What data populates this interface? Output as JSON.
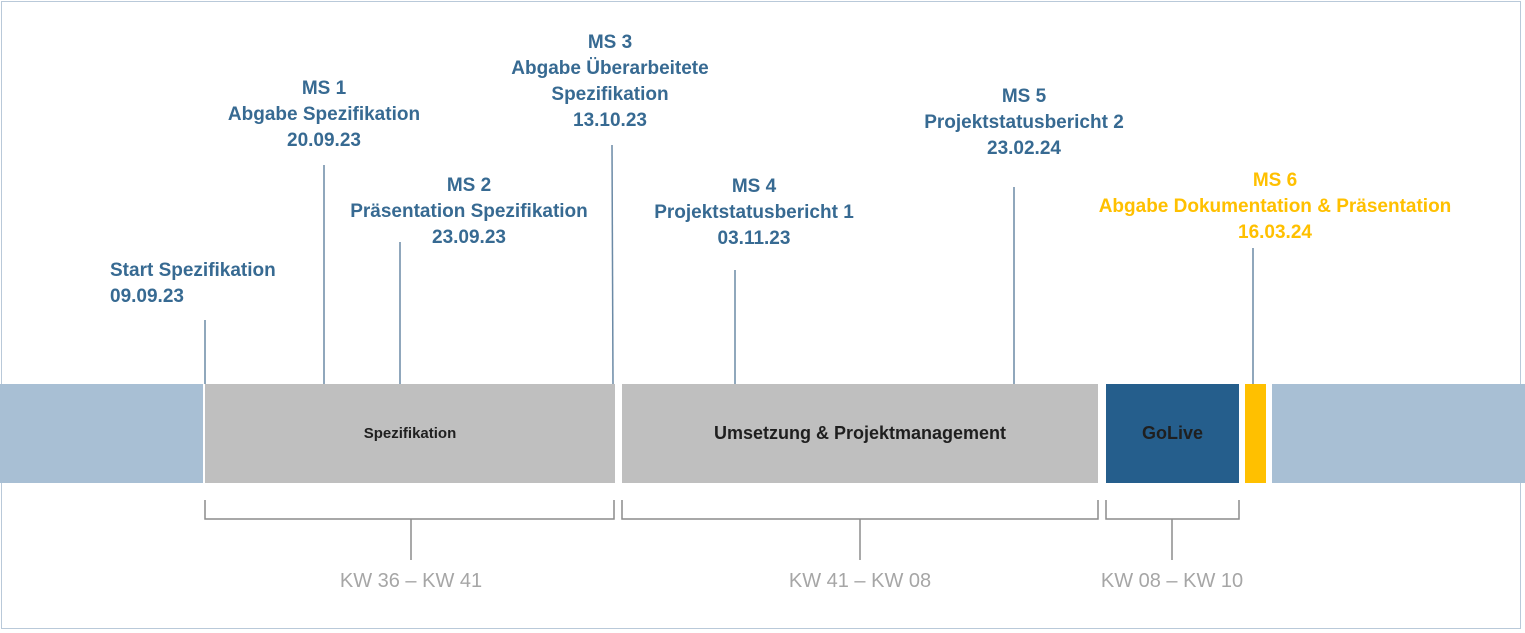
{
  "milestones": [
    {
      "id": "start",
      "lines": [
        "Start Spezifikation",
        "09.09.23"
      ],
      "color": "#376a92"
    },
    {
      "id": "ms1",
      "lines": [
        "MS 1",
        "Abgabe Spezifikation",
        "20.09.23"
      ],
      "color": "#376a92"
    },
    {
      "id": "ms2",
      "lines": [
        "MS 2",
        "Präsentation Spezifikation",
        "23.09.23"
      ],
      "color": "#376a92"
    },
    {
      "id": "ms3",
      "lines": [
        "MS 3",
        "Abgabe Überarbeitete",
        "Spezifikation",
        "13.10.23"
      ],
      "color": "#376a92"
    },
    {
      "id": "ms4",
      "lines": [
        "MS 4",
        "Projektstatusbericht 1",
        "03.11.23"
      ],
      "color": "#376a92"
    },
    {
      "id": "ms5",
      "lines": [
        "MS 5",
        "Projektstatusbericht 2",
        "23.02.24"
      ],
      "color": "#376a92"
    },
    {
      "id": "ms6",
      "lines": [
        "MS 6",
        "Abgabe Dokumentation & Präsentation",
        "16.03.24"
      ],
      "color": "#ffc000"
    }
  ],
  "phases": [
    {
      "id": "spezifikation",
      "label": "Spezifikation",
      "color": "#bfbfbf"
    },
    {
      "id": "umsetzung",
      "label": "Umsetzung & Projektmanagement",
      "color": "#bfbfbf"
    },
    {
      "id": "golive",
      "label": "GoLive",
      "color": "#255e8c"
    },
    {
      "id": "final",
      "label": "",
      "color": "#ffc000"
    }
  ],
  "week_ranges": [
    {
      "id": "kw1",
      "label": "KW 36 – KW 41"
    },
    {
      "id": "kw2",
      "label": "KW 41 – KW 08"
    },
    {
      "id": "kw3",
      "label": "KW 08 – KW 10"
    }
  ],
  "colors": {
    "timeline_band": "#a8bfd4",
    "milestone": "#376a92",
    "highlight": "#ffc000",
    "week_label": "#a6a6a6",
    "connector": "#6b8aa6"
  }
}
